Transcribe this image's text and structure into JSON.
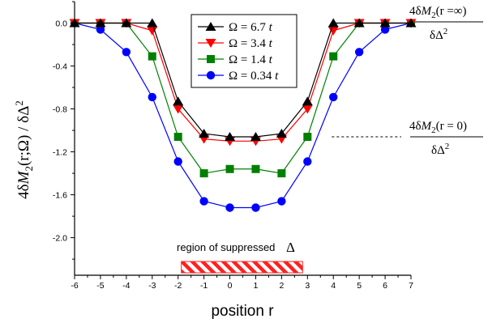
{
  "chart_data": {
    "type": "line",
    "xlabel": "position  r",
    "ylabel": "4δM2(r;Ω) / δΔ2",
    "x": [
      -6,
      -5,
      -4,
      -3,
      -2,
      -1,
      0,
      1,
      2,
      3,
      4,
      5,
      6,
      7
    ],
    "xlim": [
      -6,
      7
    ],
    "ylim": [
      -2.35,
      0.2
    ],
    "x_ticks": [
      "-6",
      "-5",
      "-4",
      "-3",
      "-2",
      "-1",
      "0",
      "1",
      "2",
      "3",
      "4",
      "5",
      "6",
      "7"
    ],
    "y_ticks": [
      {
        "value": 0.0,
        "label": "0.0"
      },
      {
        "value": -0.4,
        "label": "-0.4"
      },
      {
        "value": -0.8,
        "label": "-0.8"
      },
      {
        "value": -1.2,
        "label": "-1.2"
      },
      {
        "value": -1.6,
        "label": "-1.6"
      },
      {
        "value": -2.0,
        "label": "-2.0"
      }
    ],
    "legend_position": "top-center",
    "grid": false,
    "series": [
      {
        "name": "Ω = 6.7 t",
        "omega_value": "6.7",
        "color": "#000000",
        "marker": "triangle-up",
        "values": [
          0.0,
          0.0,
          0.0,
          0.0,
          -0.73,
          -1.03,
          -1.06,
          -1.06,
          -1.03,
          -0.73,
          0.0,
          0.0,
          0.0,
          0.0
        ]
      },
      {
        "name": "Ω = 3.4 t",
        "omega_value": "3.4",
        "color": "#ff0000",
        "marker": "triangle-down",
        "values": [
          0.0,
          0.0,
          0.0,
          -0.07,
          -0.8,
          -1.08,
          -1.1,
          -1.1,
          -1.08,
          -0.8,
          -0.07,
          0.0,
          0.0,
          0.0
        ]
      },
      {
        "name": "Ω = 1.4 t",
        "omega_value": "1.4",
        "color": "#008000",
        "marker": "square",
        "values": [
          0.0,
          0.0,
          0.0,
          -0.31,
          -1.06,
          -1.4,
          -1.36,
          -1.36,
          -1.4,
          -1.06,
          -0.31,
          0.0,
          0.0,
          0.0
        ]
      },
      {
        "name": "Ω = 0.34 t",
        "omega_value": "0.34",
        "color": "#0000ff",
        "marker": "circle",
        "values": [
          0.0,
          -0.06,
          -0.27,
          -0.69,
          -1.29,
          -1.66,
          -1.72,
          -1.72,
          -1.66,
          -1.29,
          -0.69,
          -0.27,
          -0.06,
          0.0
        ]
      }
    ],
    "region": {
      "label": "region of suppressed",
      "symbol": "Δ",
      "x_range": [
        -2,
        3
      ],
      "color": "#ff0000"
    },
    "annotations": [
      {
        "numerator": "4δM2(r =∞)",
        "denominator": "δΔ2",
        "y": 0.0
      },
      {
        "numerator": "4δM2(r = 0)",
        "denominator": "δΔ2",
        "y": -1.06
      }
    ]
  }
}
